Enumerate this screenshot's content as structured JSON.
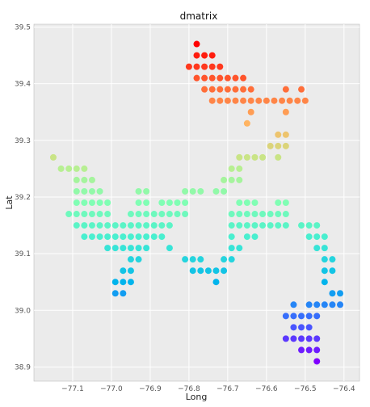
{
  "chart_data": {
    "type": "scatter",
    "title": "dmatrix",
    "xlabel": "Long",
    "ylabel": "Lat",
    "xlim": [
      -77.2,
      -76.36
    ],
    "ylim": [
      38.875,
      39.505
    ],
    "xticks": [
      -77.1,
      -77.0,
      -76.9,
      -76.8,
      -76.7,
      -76.6,
      -76.5,
      -76.4
    ],
    "xtick_labels": [
      "−77.1",
      "−77.0",
      "−76.9",
      "−76.8",
      "−76.7",
      "−76.6",
      "−76.5",
      "−76.4"
    ],
    "yticks": [
      38.9,
      39.0,
      39.1,
      39.2,
      39.3,
      39.4,
      39.5
    ],
    "ytick_labels": [
      "38.9",
      "39.0",
      "39.1",
      "39.2",
      "39.3",
      "39.4",
      "39.5"
    ],
    "grid": true,
    "colormap": "rainbow",
    "color_by": "Lat",
    "points": [
      [
        -76.78,
        39.47
      ],
      [
        -76.78,
        39.45
      ],
      [
        -76.76,
        39.45
      ],
      [
        -76.74,
        39.45
      ],
      [
        -76.8,
        39.43
      ],
      [
        -76.78,
        39.43
      ],
      [
        -76.76,
        39.43
      ],
      [
        -76.74,
        39.43
      ],
      [
        -76.72,
        39.43
      ],
      [
        -76.78,
        39.41
      ],
      [
        -76.76,
        39.41
      ],
      [
        -76.74,
        39.41
      ],
      [
        -76.72,
        39.41
      ],
      [
        -76.7,
        39.41
      ],
      [
        -76.68,
        39.41
      ],
      [
        -76.66,
        39.41
      ],
      [
        -76.76,
        39.39
      ],
      [
        -76.74,
        39.39
      ],
      [
        -76.72,
        39.39
      ],
      [
        -76.7,
        39.39
      ],
      [
        -76.68,
        39.39
      ],
      [
        -76.66,
        39.39
      ],
      [
        -76.64,
        39.39
      ],
      [
        -76.55,
        39.39
      ],
      [
        -76.51,
        39.39
      ],
      [
        -76.74,
        39.37
      ],
      [
        -76.72,
        39.37
      ],
      [
        -76.7,
        39.37
      ],
      [
        -76.68,
        39.37
      ],
      [
        -76.66,
        39.37
      ],
      [
        -76.64,
        39.37
      ],
      [
        -76.62,
        39.37
      ],
      [
        -76.6,
        39.37
      ],
      [
        -76.58,
        39.37
      ],
      [
        -76.56,
        39.37
      ],
      [
        -76.54,
        39.37
      ],
      [
        -76.52,
        39.37
      ],
      [
        -76.5,
        39.37
      ],
      [
        -76.64,
        39.35
      ],
      [
        -76.55,
        39.35
      ],
      [
        -76.65,
        39.33
      ],
      [
        -76.57,
        39.31
      ],
      [
        -76.55,
        39.31
      ],
      [
        -76.59,
        39.29
      ],
      [
        -76.57,
        39.29
      ],
      [
        -76.55,
        39.29
      ],
      [
        -76.67,
        39.27
      ],
      [
        -76.65,
        39.27
      ],
      [
        -76.63,
        39.27
      ],
      [
        -76.61,
        39.27
      ],
      [
        -76.57,
        39.27
      ],
      [
        -77.15,
        39.27
      ],
      [
        -77.13,
        39.25
      ],
      [
        -77.11,
        39.25
      ],
      [
        -77.09,
        39.25
      ],
      [
        -77.07,
        39.25
      ],
      [
        -76.69,
        39.25
      ],
      [
        -76.67,
        39.25
      ],
      [
        -77.09,
        39.23
      ],
      [
        -77.07,
        39.23
      ],
      [
        -77.05,
        39.23
      ],
      [
        -76.71,
        39.23
      ],
      [
        -76.69,
        39.23
      ],
      [
        -76.67,
        39.23
      ],
      [
        -77.09,
        39.21
      ],
      [
        -77.07,
        39.21
      ],
      [
        -77.05,
        39.21
      ],
      [
        -77.03,
        39.21
      ],
      [
        -76.93,
        39.21
      ],
      [
        -76.91,
        39.21
      ],
      [
        -76.81,
        39.21
      ],
      [
        -76.79,
        39.21
      ],
      [
        -76.77,
        39.21
      ],
      [
        -76.73,
        39.21
      ],
      [
        -76.71,
        39.21
      ],
      [
        -77.09,
        39.19
      ],
      [
        -77.07,
        39.19
      ],
      [
        -77.05,
        39.19
      ],
      [
        -77.03,
        39.19
      ],
      [
        -77.01,
        39.19
      ],
      [
        -76.93,
        39.19
      ],
      [
        -76.91,
        39.19
      ],
      [
        -76.87,
        39.19
      ],
      [
        -76.85,
        39.19
      ],
      [
        -76.83,
        39.19
      ],
      [
        -76.81,
        39.19
      ],
      [
        -76.67,
        39.19
      ],
      [
        -76.65,
        39.19
      ],
      [
        -76.63,
        39.19
      ],
      [
        -76.57,
        39.19
      ],
      [
        -76.55,
        39.19
      ],
      [
        -77.11,
        39.17
      ],
      [
        -77.09,
        39.17
      ],
      [
        -77.07,
        39.17
      ],
      [
        -77.05,
        39.17
      ],
      [
        -77.03,
        39.17
      ],
      [
        -77.01,
        39.17
      ],
      [
        -76.95,
        39.17
      ],
      [
        -76.93,
        39.17
      ],
      [
        -76.91,
        39.17
      ],
      [
        -76.89,
        39.17
      ],
      [
        -76.87,
        39.17
      ],
      [
        -76.85,
        39.17
      ],
      [
        -76.83,
        39.17
      ],
      [
        -76.81,
        39.17
      ],
      [
        -76.69,
        39.17
      ],
      [
        -76.67,
        39.17
      ],
      [
        -76.65,
        39.17
      ],
      [
        -76.63,
        39.17
      ],
      [
        -76.61,
        39.17
      ],
      [
        -76.59,
        39.17
      ],
      [
        -76.57,
        39.17
      ],
      [
        -76.55,
        39.17
      ],
      [
        -77.09,
        39.15
      ],
      [
        -77.07,
        39.15
      ],
      [
        -77.05,
        39.15
      ],
      [
        -77.03,
        39.15
      ],
      [
        -77.01,
        39.15
      ],
      [
        -76.99,
        39.15
      ],
      [
        -76.97,
        39.15
      ],
      [
        -76.95,
        39.15
      ],
      [
        -76.93,
        39.15
      ],
      [
        -76.91,
        39.15
      ],
      [
        -76.89,
        39.15
      ],
      [
        -76.87,
        39.15
      ],
      [
        -76.85,
        39.15
      ],
      [
        -76.69,
        39.15
      ],
      [
        -76.67,
        39.15
      ],
      [
        -76.65,
        39.15
      ],
      [
        -76.63,
        39.15
      ],
      [
        -76.61,
        39.15
      ],
      [
        -76.59,
        39.15
      ],
      [
        -76.57,
        39.15
      ],
      [
        -76.55,
        39.15
      ],
      [
        -76.51,
        39.15
      ],
      [
        -76.49,
        39.15
      ],
      [
        -76.47,
        39.15
      ],
      [
        -77.07,
        39.13
      ],
      [
        -77.05,
        39.13
      ],
      [
        -77.03,
        39.13
      ],
      [
        -77.01,
        39.13
      ],
      [
        -76.99,
        39.13
      ],
      [
        -76.97,
        39.13
      ],
      [
        -76.95,
        39.13
      ],
      [
        -76.93,
        39.13
      ],
      [
        -76.91,
        39.13
      ],
      [
        -76.89,
        39.13
      ],
      [
        -76.87,
        39.13
      ],
      [
        -76.69,
        39.13
      ],
      [
        -76.65,
        39.13
      ],
      [
        -76.63,
        39.13
      ],
      [
        -76.49,
        39.13
      ],
      [
        -76.47,
        39.13
      ],
      [
        -76.45,
        39.13
      ],
      [
        -77.01,
        39.11
      ],
      [
        -76.99,
        39.11
      ],
      [
        -76.97,
        39.11
      ],
      [
        -76.95,
        39.11
      ],
      [
        -76.93,
        39.11
      ],
      [
        -76.91,
        39.11
      ],
      [
        -76.85,
        39.11
      ],
      [
        -76.69,
        39.11
      ],
      [
        -76.67,
        39.11
      ],
      [
        -76.47,
        39.11
      ],
      [
        -76.45,
        39.11
      ],
      [
        -76.95,
        39.09
      ],
      [
        -76.93,
        39.09
      ],
      [
        -76.81,
        39.09
      ],
      [
        -76.79,
        39.09
      ],
      [
        -76.77,
        39.09
      ],
      [
        -76.71,
        39.09
      ],
      [
        -76.69,
        39.09
      ],
      [
        -76.45,
        39.09
      ],
      [
        -76.43,
        39.09
      ],
      [
        -76.97,
        39.07
      ],
      [
        -76.95,
        39.07
      ],
      [
        -76.79,
        39.07
      ],
      [
        -76.77,
        39.07
      ],
      [
        -76.75,
        39.07
      ],
      [
        -76.73,
        39.07
      ],
      [
        -76.71,
        39.07
      ],
      [
        -76.45,
        39.07
      ],
      [
        -76.43,
        39.07
      ],
      [
        -76.99,
        39.05
      ],
      [
        -76.97,
        39.05
      ],
      [
        -76.95,
        39.05
      ],
      [
        -76.73,
        39.05
      ],
      [
        -76.45,
        39.05
      ],
      [
        -76.99,
        39.03
      ],
      [
        -76.97,
        39.03
      ],
      [
        -76.43,
        39.03
      ],
      [
        -76.41,
        39.03
      ],
      [
        -76.53,
        39.01
      ],
      [
        -76.49,
        39.01
      ],
      [
        -76.47,
        39.01
      ],
      [
        -76.45,
        39.01
      ],
      [
        -76.43,
        39.01
      ],
      [
        -76.41,
        39.01
      ],
      [
        -76.55,
        38.99
      ],
      [
        -76.53,
        38.99
      ],
      [
        -76.51,
        38.99
      ],
      [
        -76.49,
        38.99
      ],
      [
        -76.47,
        38.99
      ],
      [
        -76.53,
        38.97
      ],
      [
        -76.51,
        38.97
      ],
      [
        -76.49,
        38.97
      ],
      [
        -76.55,
        38.95
      ],
      [
        -76.53,
        38.95
      ],
      [
        -76.51,
        38.95
      ],
      [
        -76.49,
        38.95
      ],
      [
        -76.47,
        38.95
      ],
      [
        -76.51,
        38.93
      ],
      [
        -76.49,
        38.93
      ],
      [
        -76.47,
        38.93
      ],
      [
        -76.47,
        38.91
      ]
    ]
  }
}
